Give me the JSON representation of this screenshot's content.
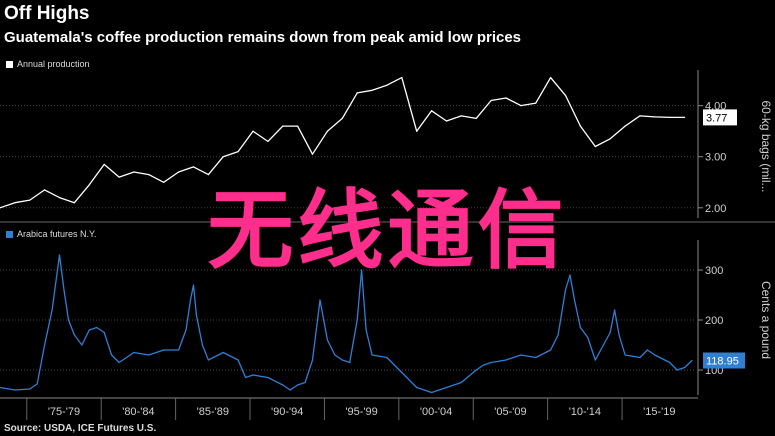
{
  "header": {
    "title": "Off Highs",
    "subtitle": "Guatemala's coffee production remains down from peak amid low prices"
  },
  "source": "Source: USDA, ICE Futures U.S.",
  "watermark": "无线通信",
  "colors": {
    "production": "#ffffff",
    "arabica": "#2f7fd3",
    "grid": "#444444",
    "background": "#000000"
  },
  "chart_data": [
    {
      "type": "line",
      "legend": "Annual production",
      "ylabel": "60-kg bags (mil...",
      "yticks": [
        "2.00",
        "3.00",
        "4.00"
      ],
      "ylim": [
        1.8,
        4.6
      ],
      "last_value_label": "3.77",
      "series": [
        {
          "name": "Annual production",
          "x": [
            1973,
            1974,
            1975,
            1976,
            1977,
            1978,
            1979,
            1980,
            1981,
            1982,
            1983,
            1984,
            1985,
            1986,
            1987,
            1988,
            1989,
            1990,
            1991,
            1992,
            1993,
            1994,
            1995,
            1996,
            1997,
            1998,
            1999,
            2000,
            2001,
            2002,
            2003,
            2004,
            2005,
            2006,
            2007,
            2008,
            2009,
            2010,
            2011,
            2012,
            2013,
            2014,
            2015,
            2016,
            2017,
            2018,
            2019
          ],
          "values": [
            2.0,
            2.1,
            2.15,
            2.35,
            2.2,
            2.1,
            2.45,
            2.85,
            2.6,
            2.7,
            2.65,
            2.5,
            2.7,
            2.8,
            2.65,
            3.0,
            3.1,
            3.5,
            3.3,
            3.6,
            3.6,
            3.05,
            3.5,
            3.75,
            4.25,
            4.3,
            4.4,
            4.55,
            3.5,
            3.9,
            3.7,
            3.8,
            3.75,
            4.1,
            4.15,
            4.0,
            4.05,
            4.55,
            4.2,
            3.6,
            3.2,
            3.35,
            3.6,
            3.8,
            3.78,
            3.77,
            3.77
          ]
        }
      ]
    },
    {
      "type": "line",
      "legend": "Arabica futures N.Y.",
      "ylabel": "Cents a pound",
      "yticks": [
        "100",
        "200",
        "300"
      ],
      "ylim": [
        50,
        350
      ],
      "last_value_label": "118.95",
      "x_tick_labels": [
        "'75-'79",
        "'80-'84",
        "'85-'89",
        "'90-'94",
        "'95-'99",
        "'00-'04",
        "'05-'09",
        "'10-'14",
        "'15-'19"
      ],
      "series": [
        {
          "name": "Arabica futures N.Y.",
          "x": [
            1973.0,
            1974.0,
            1975.0,
            1975.5,
            1976.0,
            1976.5,
            1977.0,
            1977.3,
            1977.6,
            1978.0,
            1978.5,
            1979.0,
            1979.5,
            1980.0,
            1980.5,
            1981.0,
            1981.5,
            1982.0,
            1983.0,
            1984.0,
            1985.0,
            1985.5,
            1985.8,
            1986.0,
            1986.2,
            1986.6,
            1987.0,
            1988.0,
            1989.0,
            1989.5,
            1990.0,
            1991.0,
            1992.0,
            1992.5,
            1993.0,
            1993.5,
            1994.0,
            1994.5,
            1995.0,
            1995.5,
            1996.0,
            1996.5,
            1997.0,
            1997.3,
            1997.6,
            1998.0,
            1999.0,
            2000.0,
            2001.0,
            2002.0,
            2003.0,
            2004.0,
            2005.0,
            2005.5,
            2006.0,
            2007.0,
            2008.0,
            2009.0,
            2010.0,
            2010.5,
            2011.0,
            2011.3,
            2011.6,
            2012.0,
            2012.5,
            2013.0,
            2014.0,
            2014.3,
            2014.6,
            2015.0,
            2016.0,
            2016.5,
            2017.0,
            2018.0,
            2018.5,
            2019.0,
            2019.5
          ],
          "values": [
            65,
            60,
            62,
            72,
            150,
            220,
            330,
            260,
            200,
            170,
            150,
            180,
            185,
            175,
            130,
            115,
            125,
            135,
            130,
            140,
            140,
            180,
            240,
            270,
            210,
            150,
            120,
            135,
            120,
            85,
            90,
            85,
            70,
            60,
            70,
            75,
            120,
            240,
            160,
            130,
            120,
            115,
            200,
            300,
            180,
            130,
            125,
            95,
            65,
            55,
            65,
            75,
            100,
            110,
            115,
            120,
            130,
            125,
            140,
            170,
            260,
            290,
            240,
            185,
            165,
            120,
            175,
            220,
            170,
            130,
            125,
            140,
            130,
            115,
            100,
            105,
            119
          ]
        }
      ]
    }
  ]
}
